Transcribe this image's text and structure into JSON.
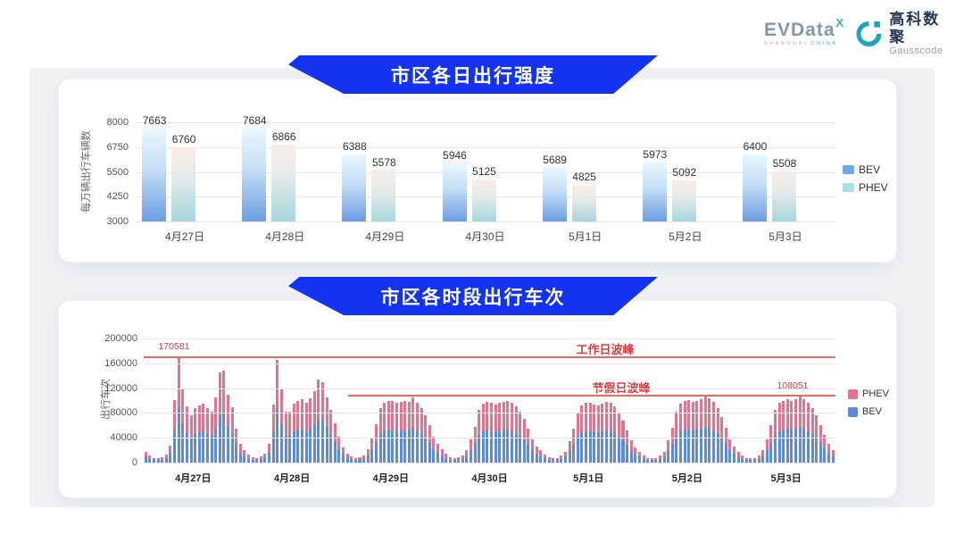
{
  "header": {
    "evdata_logo": {
      "text": "EVData",
      "superscript": "X",
      "subtext_left": "SHANGHAI",
      "subtext_right": "CHINA"
    },
    "gausscode_logo": {
      "cn": "高科数聚",
      "en": "Gausscode"
    }
  },
  "colors": {
    "banner_blue": "#1433f0",
    "backdrop": "#f1f1f4",
    "bev_bottom": "#5d8bd9",
    "phev_bottom": "#e1738d",
    "ref_red": "#e03a3a",
    "legend_bev_top": "#6ea9e8",
    "legend_phev_top": "#a9dde9"
  },
  "chart_data": [
    {
      "id": "daily_intensity",
      "type": "bar",
      "title": "市区各日出行强度",
      "ylabel": "每万辆出行车辆数",
      "ylim": [
        3000,
        8000
      ],
      "yticks": [
        3000,
        4250,
        5500,
        6750,
        8000
      ],
      "grid": true,
      "legend_position": "right",
      "categories": [
        "4月27日",
        "4月28日",
        "4月29日",
        "4月30日",
        "5月1日",
        "5月2日",
        "5月3日"
      ],
      "series": [
        {
          "name": "BEV",
          "values": [
            7663,
            7684,
            6388,
            5946,
            5689,
            5973,
            6400
          ]
        },
        {
          "name": "PHEV",
          "values": [
            6760,
            6866,
            5578,
            5125,
            4825,
            5092,
            5508
          ]
        }
      ]
    },
    {
      "id": "hourly_trips",
      "type": "stacked-bar",
      "title": "市区各时段出行车次",
      "ylabel": "出行车次",
      "ylim": [
        0,
        200000
      ],
      "yticks": [
        0,
        40000,
        80000,
        120000,
        160000,
        200000
      ],
      "grid": true,
      "legend_position": "right",
      "legend": [
        "PHEV",
        "BEV"
      ],
      "categories": [
        "4月27日",
        "4月28日",
        "4月29日",
        "4月30日",
        "5月1日",
        "5月2日",
        "5月3日"
      ],
      "hours_per_day": 24,
      "series": [
        {
          "name": "BEV",
          "days": [
            [
              9500,
              5800,
              4200,
              3700,
              4800,
              6900,
              14300,
              53300,
              90400,
              63100,
              48200,
              40300,
              46600,
              48800,
              50400,
              46600,
              43500,
              55700,
              77400,
              79000,
              57800,
              47200,
              29200,
              15900
            ],
            [
              10600,
              6900,
              4800,
              4200,
              5300,
              8000,
              15900,
              49800,
              87500,
              62500,
              43500,
              43500,
              50400,
              53000,
              54100,
              50900,
              55100,
              61000,
              71000,
              68900,
              55700,
              45100,
              33900,
              22300
            ],
            [
              13300,
              8000,
              5300,
              4200,
              4800,
              6400,
              11700,
              21200,
              32900,
              46600,
              51400,
              53000,
              52500,
              50900,
              51900,
              52500,
              51900,
              55700,
              51400,
              46600,
              40300,
              31800,
              22300,
              15900
            ],
            [
              11700,
              7400,
              4800,
              4200,
              4800,
              6400,
              10600,
              20100,
              30700,
              45100,
              50400,
              51900,
              50900,
              49300,
              51400,
              51900,
              53000,
              50900,
              47700,
              43500,
              37100,
              29200,
              20100,
              13800
            ],
            [
              10600,
              6900,
              4800,
              3700,
              4200,
              5800,
              9500,
              18600,
              29200,
              42400,
              48800,
              50900,
              51400,
              49800,
              48800,
              50400,
              51900,
              50900,
              47700,
              42400,
              36000,
              27600,
              19100,
              12700
            ],
            [
              9500,
              6400,
              4200,
              3700,
              4200,
              5800,
              9500,
              19100,
              29700,
              43500,
              50400,
              53000,
              53500,
              51900,
              53000,
              54600,
              56700,
              55100,
              51900,
              46600,
              39200,
              29700,
              20100,
              13800
            ],
            [
              9000,
              5800,
              4200,
              3700,
              4200,
              6400,
              10600,
              20100,
              31800,
              45100,
              50900,
              53000,
              54100,
              53000,
              54600,
              57300,
              54600,
              50900,
              46600,
              40300,
              31800,
              23300,
              15900,
              10600
            ]
          ]
        },
        {
          "name": "PHEV",
          "days": [
            [
              8500,
              5200,
              3800,
              3300,
              4200,
              6100,
              12700,
              47200,
              80181,
              55900,
              42800,
              35700,
              41400,
              43200,
              44600,
              41400,
              38500,
              49300,
              68600,
              70000,
              51200,
              41800,
              25800,
              14100
            ],
            [
              9400,
              6100,
              4200,
              3800,
              4700,
              7000,
              14100,
              44200,
              77500,
              55500,
              38500,
              38500,
              44600,
              47000,
              47900,
              45100,
              48900,
              54000,
              63000,
              61100,
              49300,
              39900,
              30100,
              19700
            ],
            [
              11700,
              7000,
              4700,
              3800,
              4200,
              5600,
              10300,
              18800,
              29100,
              41400,
              45600,
              47000,
              46500,
              45100,
              46100,
              46500,
              46100,
              49300,
              45600,
              41400,
              35700,
              28200,
              19700,
              14100
            ],
            [
              10300,
              6600,
              4200,
              3800,
              4200,
              5600,
              9400,
              17900,
              27300,
              39900,
              44600,
              46100,
              45100,
              43700,
              45600,
              46100,
              47000,
              45100,
              42300,
              38500,
              32900,
              25800,
              17900,
              12200
            ],
            [
              9400,
              6100,
              4200,
              3300,
              3800,
              5200,
              8500,
              16400,
              25800,
              37600,
              43200,
              45100,
              45600,
              44200,
              43200,
              44600,
              46100,
              45100,
              42300,
              37600,
              32000,
              24400,
              16900,
              11300
            ],
            [
              8500,
              5600,
              3800,
              3300,
              3800,
              5200,
              8500,
              16900,
              26300,
              38500,
              44600,
              47000,
              47500,
              46100,
              47000,
              48400,
              50300,
              48900,
              46100,
              41400,
              34800,
              26300,
              17900,
              12200
            ],
            [
              8000,
              5200,
              3800,
              3300,
              3800,
              5600,
              9400,
              17900,
              28200,
              39900,
              45100,
              47000,
              47900,
              47000,
              48400,
              50751,
              48400,
              45100,
              41400,
              35700,
              28200,
              20700,
              14100,
              9400
            ]
          ]
        }
      ],
      "annotations": {
        "workday_peak": {
          "label": "工作日波峰",
          "value": 170581,
          "value_label": "170581"
        },
        "holiday_peak": {
          "label": "节假日波峰",
          "value": 108051,
          "value_label": "108051"
        }
      }
    }
  ]
}
